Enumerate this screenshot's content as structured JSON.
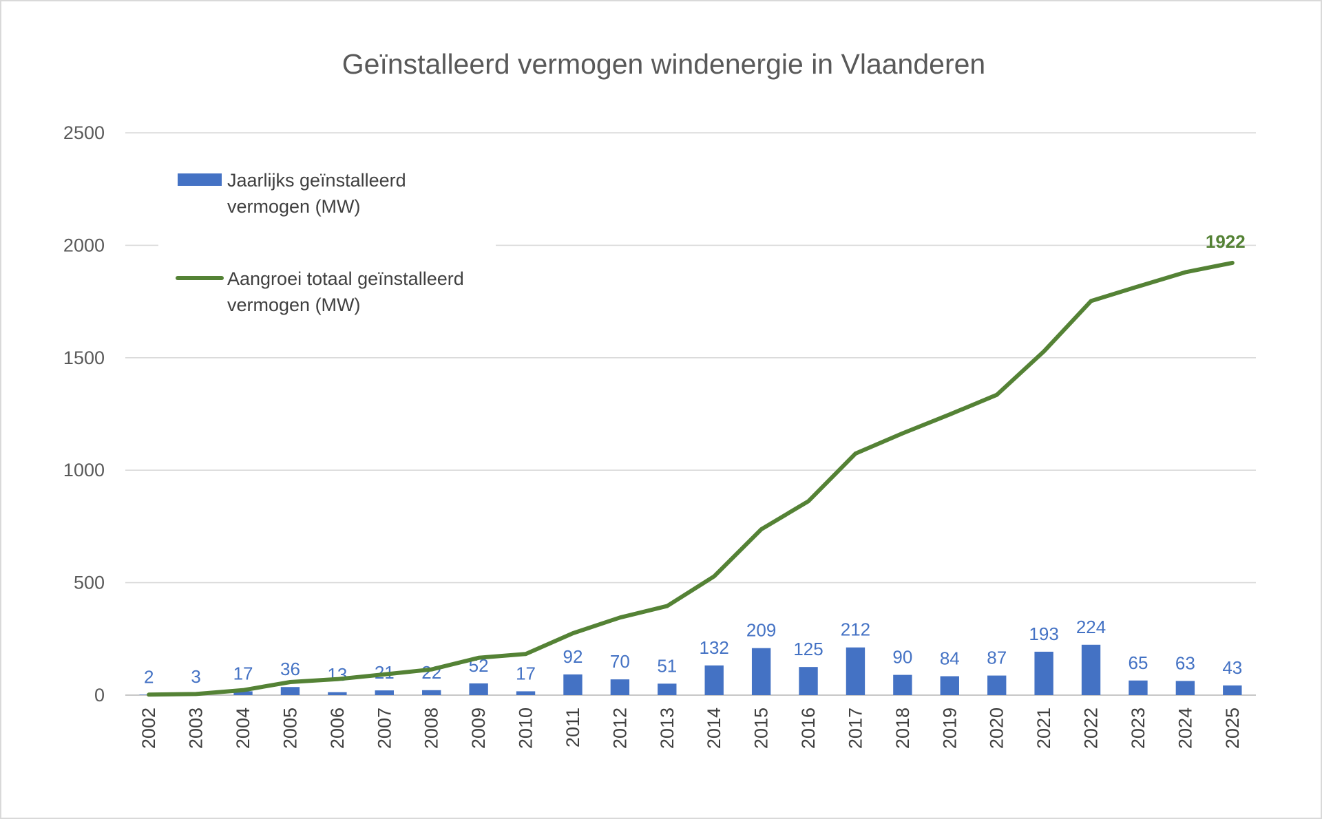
{
  "chart_data": {
    "type": "bar+line",
    "title": "Geïnstalleerd vermogen windenergie in Vlaanderen",
    "xlabel": "",
    "ylabel": "",
    "ylim": [
      0,
      2500
    ],
    "yticks": [
      0,
      500,
      1000,
      1500,
      2000,
      2500
    ],
    "grid": true,
    "legend_position": "top-left",
    "categories": [
      "2002",
      "2003",
      "2004",
      "2005",
      "2006",
      "2007",
      "2008",
      "2009",
      "2010",
      "2011",
      "2012",
      "2013",
      "2014",
      "2015",
      "2016",
      "2017",
      "2018",
      "2019",
      "2020",
      "2021",
      "2022",
      "2023",
      "2024",
      "2025"
    ],
    "series": [
      {
        "name": "Jaarlijks geïnstalleerd vermogen (MW)",
        "name_lines": [
          "Jaarlijks geïnstalleerd",
          "vermogen (MW)"
        ],
        "type": "bar",
        "color": "#4472c4",
        "values": [
          2,
          3,
          17,
          36,
          13,
          21,
          22,
          52,
          17,
          92,
          70,
          51,
          132,
          209,
          125,
          212,
          90,
          84,
          87,
          193,
          224,
          65,
          63,
          43
        ],
        "data_labels": [
          "2",
          "3",
          "17",
          "36",
          "13",
          "21",
          "22",
          "52",
          "17",
          "92",
          "70",
          "51",
          "132",
          "209",
          "125",
          "212",
          "90",
          "84",
          "87",
          "193",
          "224",
          "65",
          "63",
          "43"
        ]
      },
      {
        "name": "Aangroei totaal geïnstalleerd vermogen (MW)",
        "name_lines": [
          "Aangroei totaal geïnstalleerd",
          "vermogen (MW)"
        ],
        "type": "line",
        "color": "#548235",
        "values": [
          2,
          5,
          22,
          58,
          71,
          92,
          114,
          166,
          183,
          275,
          345,
          396,
          528,
          737,
          862,
          1074,
          1164,
          1248,
          1335,
          1528,
          1752,
          1817,
          1880,
          1922
        ],
        "end_label": "1922"
      }
    ]
  }
}
